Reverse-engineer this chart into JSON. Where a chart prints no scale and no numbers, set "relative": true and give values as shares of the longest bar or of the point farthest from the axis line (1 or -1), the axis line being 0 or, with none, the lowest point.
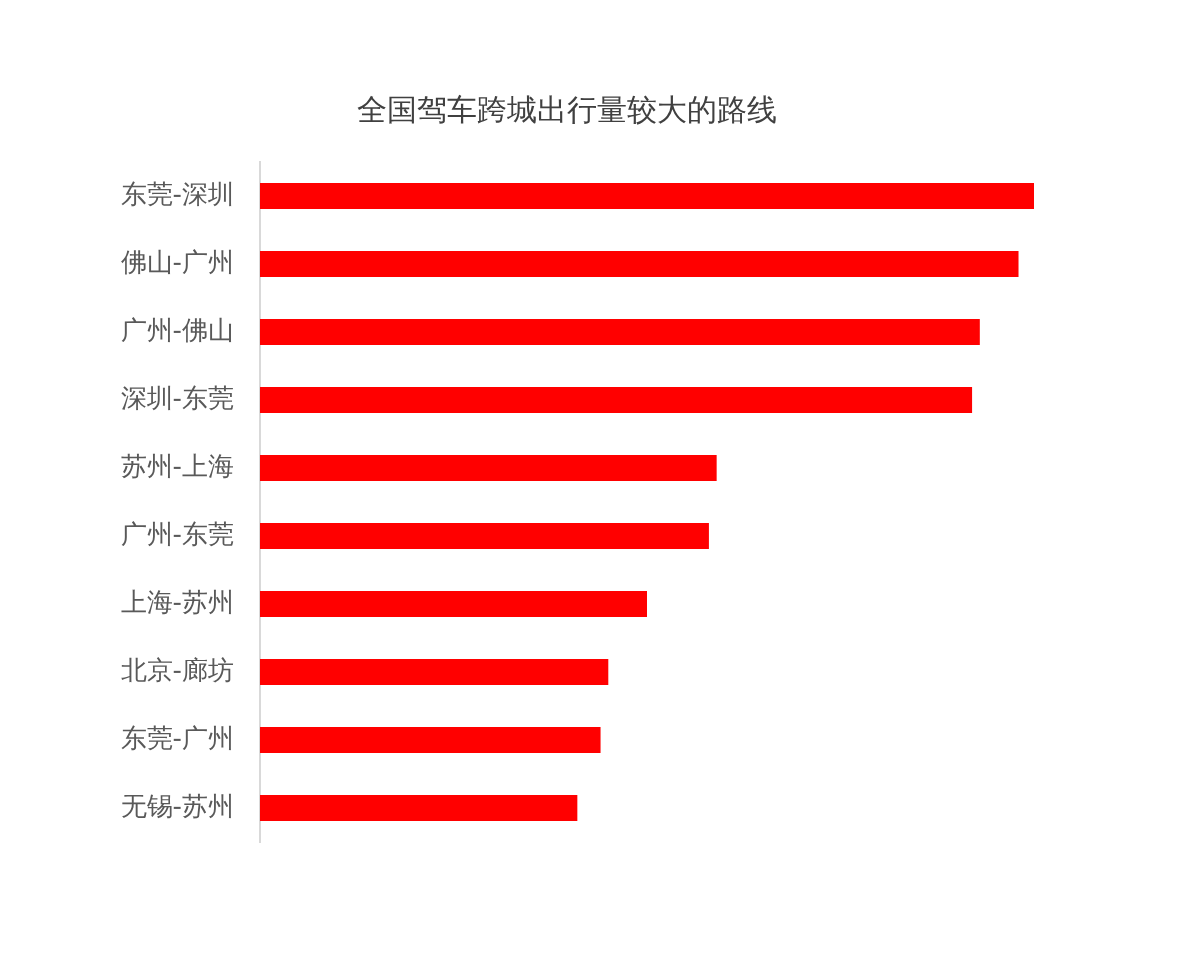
{
  "chart_data": {
    "type": "bar",
    "title": "全国驾车跨城出行量较大的路线",
    "orientation": "horizontal",
    "relative": true,
    "categories": [
      "东莞-深圳",
      "佛山-广州",
      "广州-佛山",
      "深圳-东莞",
      "苏州-上海",
      "广州-东莞",
      "上海-苏州",
      "北京-廊坊",
      "东莞-广州",
      "无锡-苏州"
    ],
    "values": [
      1,
      0.98,
      0.93,
      0.92,
      0.59,
      0.58,
      0.5,
      0.45,
      0.44,
      0.41
    ],
    "color": "#ff0000"
  }
}
